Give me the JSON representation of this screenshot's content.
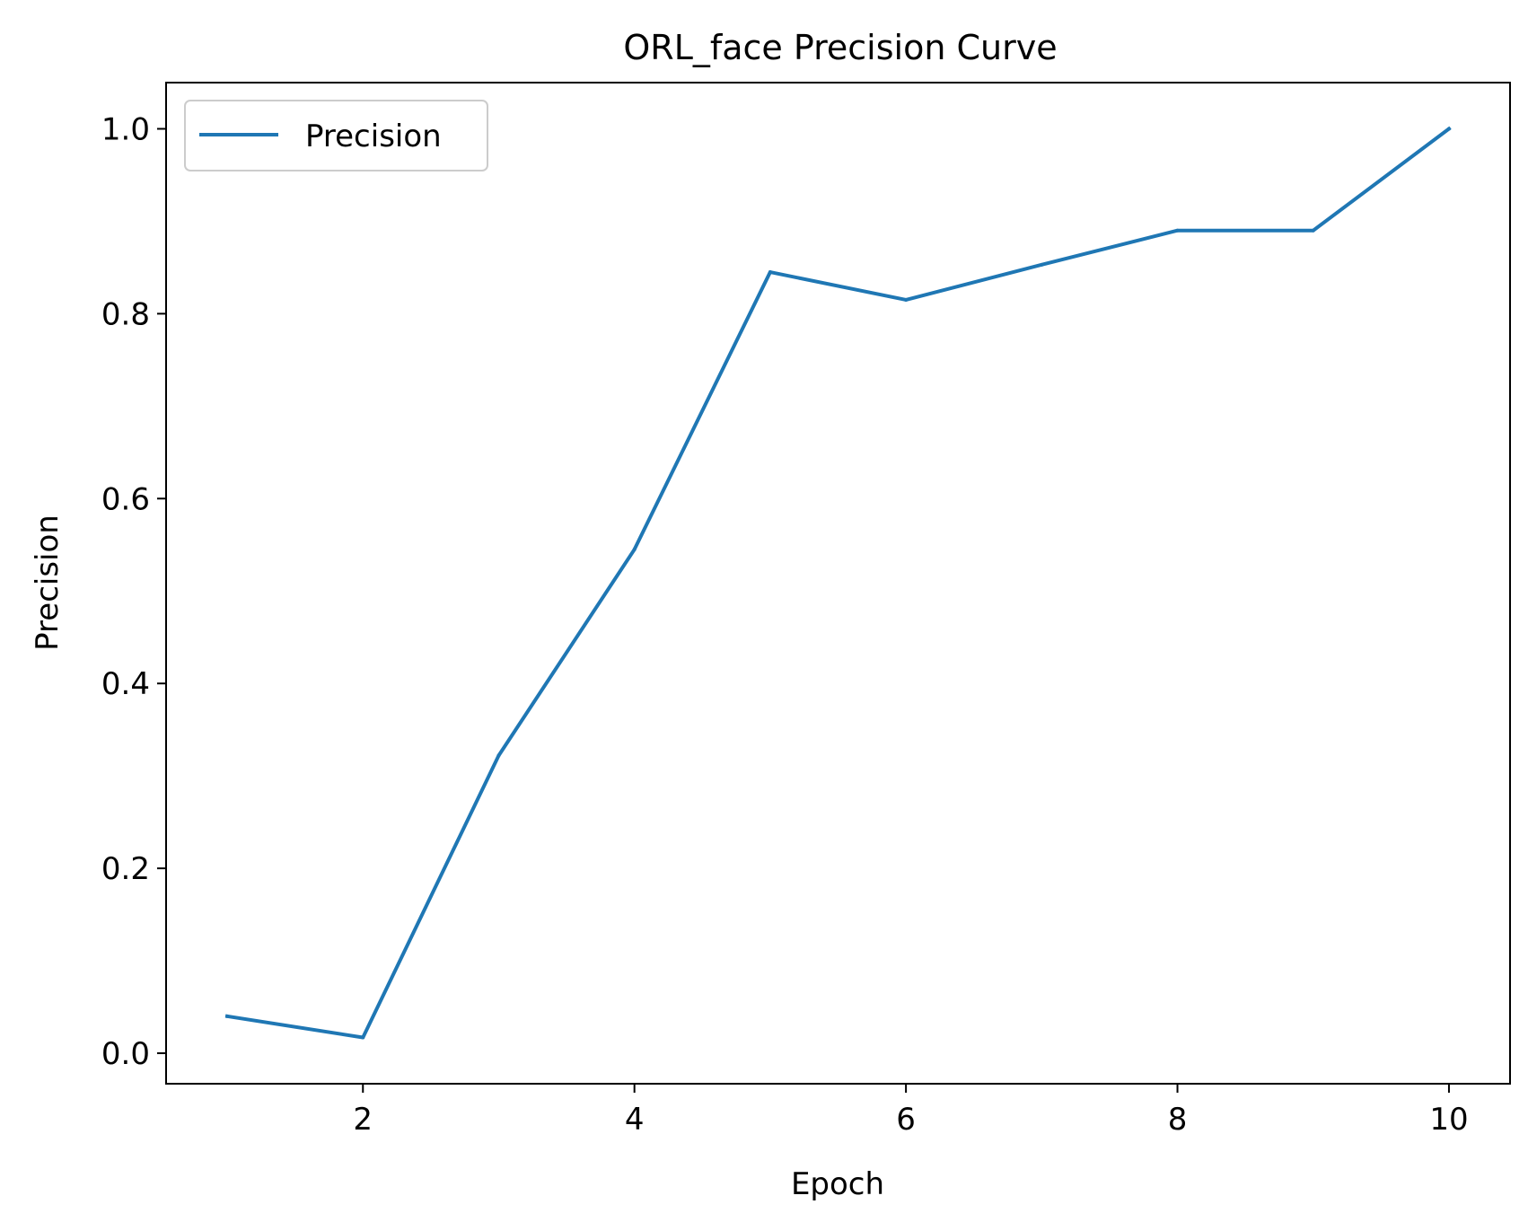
{
  "chart_data": {
    "type": "line",
    "title": "ORL_face Precision Curve",
    "xlabel": "Epoch",
    "ylabel": "Precision",
    "x": [
      1,
      2,
      3,
      4,
      5,
      6,
      7,
      8,
      9,
      10
    ],
    "series": [
      {
        "name": "Precision",
        "color": "#1f77b4",
        "values": [
          0.04,
          0.017,
          0.322,
          0.545,
          0.845,
          0.815,
          0.853,
          0.89,
          0.89,
          1.0
        ]
      }
    ],
    "xlim": [
      0.55,
      10.45
    ],
    "ylim": [
      -0.033,
      1.05
    ],
    "xticks": [
      2,
      4,
      6,
      8,
      10
    ],
    "xtick_labels": [
      "2",
      "4",
      "6",
      "8",
      "10"
    ],
    "yticks": [
      0.0,
      0.2,
      0.4,
      0.6,
      0.8,
      1.0
    ],
    "ytick_labels": [
      "0.0",
      "0.2",
      "0.4",
      "0.6",
      "0.8",
      "1.0"
    ],
    "grid": false,
    "legend_position": "top-left"
  }
}
